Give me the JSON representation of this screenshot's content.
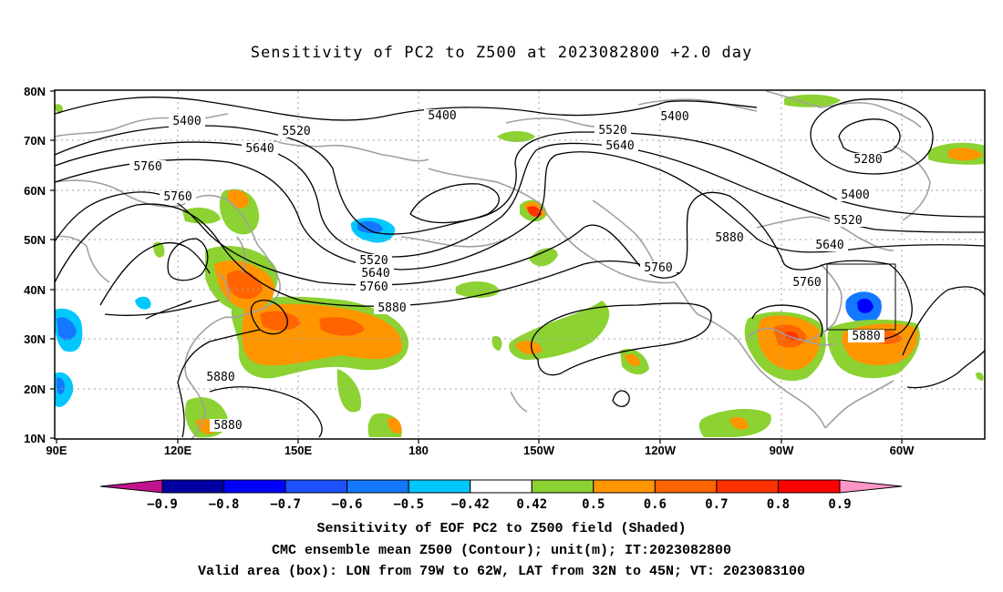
{
  "title": "Sensitivity of PC2 to Z500 at 2023082800 +2.0 day",
  "map": {
    "lat_labels": [
      "80N",
      "70N",
      "60N",
      "50N",
      "40N",
      "30N",
      "20N",
      "10N"
    ],
    "lon_labels": [
      "90E",
      "120E",
      "150E",
      "180",
      "150W",
      "120W",
      "90W",
      "60W"
    ],
    "contour_labels": [
      {
        "text": "5400"
      },
      {
        "text": "5520"
      },
      {
        "text": "5640"
      },
      {
        "text": "5760"
      },
      {
        "text": "5760"
      },
      {
        "text": "5400"
      },
      {
        "text": "5520"
      },
      {
        "text": "5640"
      },
      {
        "text": "5400"
      },
      {
        "text": "5280"
      },
      {
        "text": "5400"
      },
      {
        "text": "5520"
      },
      {
        "text": "5640"
      },
      {
        "text": "5880"
      },
      {
        "text": "5760"
      },
      {
        "text": "5520"
      },
      {
        "text": "5640"
      },
      {
        "text": "5760"
      },
      {
        "text": "5880"
      },
      {
        "text": "5760"
      },
      {
        "text": "5880"
      },
      {
        "text": "5880"
      },
      {
        "text": "5880"
      }
    ],
    "valid_box": {
      "lon": "79W to 62W",
      "lat": "32N to 45N"
    }
  },
  "colorbar": {
    "labels": [
      "-0.9",
      "-0.8",
      "-0.7",
      "-0.6",
      "-0.5",
      "-0.42",
      "0.42",
      "0.5",
      "0.6",
      "0.7",
      "0.8",
      "0.9"
    ],
    "colors": [
      "#0000a0",
      "#0000ff",
      "#1e50ff",
      "#1478ff",
      "#00c8ff",
      "#ffffff",
      "#8cd232",
      "#ff9600",
      "#ff6400",
      "#ff3200",
      "#ff0000"
    ],
    "low_end_color": "#c0148c",
    "high_end_color": "#ff96c8"
  },
  "captions": {
    "line1": "Sensitivity of EOF PC2 to Z500 field (Shaded)",
    "line2": "CMC ensemble mean Z500 (Contour); unit(m); IT:2023082800",
    "line3": "Valid area (box): LON from 79W to 62W, LAT from 32N to 45N; VT: 2023083100"
  }
}
